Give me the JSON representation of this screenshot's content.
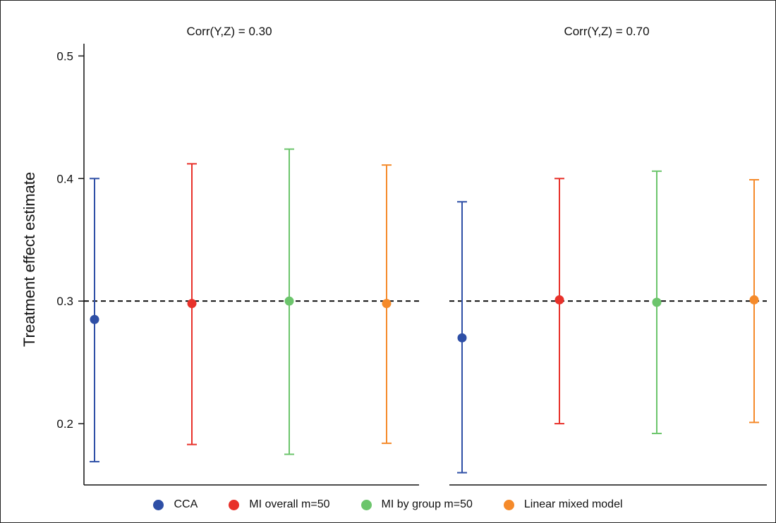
{
  "chart_data": {
    "type": "scatter",
    "ylabel": "Treatment effect estimate",
    "ylim": [
      0.15,
      0.51
    ],
    "yticks": [
      0.2,
      0.3,
      0.4,
      0.5
    ],
    "ytick_labels": [
      "0.2",
      "0.3",
      "0.4",
      "0.5"
    ],
    "reference_line": 0.3,
    "legend_position": "bottom",
    "grid": false,
    "series": [
      {
        "name": "CCA",
        "color": "#2e4fa6"
      },
      {
        "name": "MI overall m=50",
        "color": "#e8312a"
      },
      {
        "name": "MI by group m=50",
        "color": "#6cc56c"
      },
      {
        "name": "Linear mixed model",
        "color": "#f58a2a"
      }
    ],
    "panels": [
      {
        "title": "Corr(Y,Z) = 0.30",
        "points": [
          {
            "series": "CCA",
            "estimate": 0.285,
            "lower": 0.169,
            "upper": 0.4
          },
          {
            "series": "MI overall m=50",
            "estimate": 0.298,
            "lower": 0.183,
            "upper": 0.412
          },
          {
            "series": "MI by group m=50",
            "estimate": 0.3,
            "lower": 0.175,
            "upper": 0.424
          },
          {
            "series": "Linear mixed model",
            "estimate": 0.298,
            "lower": 0.184,
            "upper": 0.411
          }
        ]
      },
      {
        "title": "Corr(Y,Z) = 0.70",
        "points": [
          {
            "series": "CCA",
            "estimate": 0.27,
            "lower": 0.16,
            "upper": 0.381
          },
          {
            "series": "MI overall m=50",
            "estimate": 0.301,
            "lower": 0.2,
            "upper": 0.4
          },
          {
            "series": "MI by group m=50",
            "estimate": 0.299,
            "lower": 0.192,
            "upper": 0.406
          },
          {
            "series": "Linear mixed model",
            "estimate": 0.301,
            "lower": 0.201,
            "upper": 0.399
          }
        ]
      }
    ]
  }
}
